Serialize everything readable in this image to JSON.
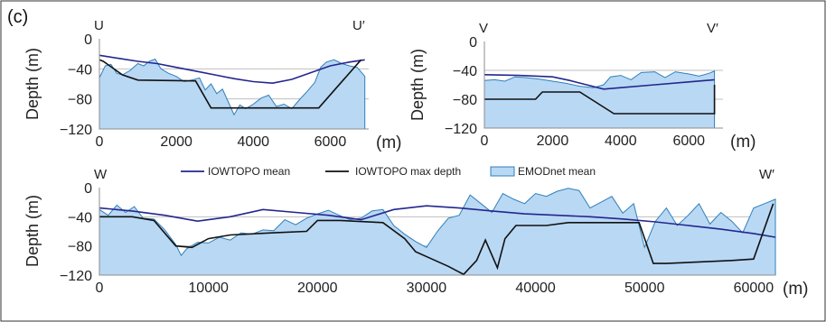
{
  "figure": {
    "tag": "(c)",
    "legend": {
      "iowtopo_mean": "IOWTOPO mean",
      "iowtopo_max": "IOWTOPO max depth",
      "emodnet_mean": "EMODnet mean"
    },
    "colors": {
      "emodnet_fill": "#b9d8f4",
      "emodnet_line": "#2f7fb9",
      "iowtopo_mean": "#23268f",
      "iowtopo_max": "#111111"
    }
  },
  "chart_data": [
    {
      "type": "area",
      "panel": "U",
      "start_label": "U",
      "end_label": "U′",
      "xlabel": "(m)",
      "ylabel": "Depth (m)",
      "xlim": [
        0,
        7000
      ],
      "ylim": [
        -120,
        0
      ],
      "xticks": [
        0,
        2000,
        4000,
        6000
      ],
      "yticks": [
        0,
        -40,
        -80,
        -120
      ],
      "grid": true,
      "series": [
        {
          "name": "EMODnet mean",
          "x": [
            0,
            150,
            300,
            450,
            600,
            800,
            1000,
            1150,
            1300,
            1450,
            1600,
            1800,
            2000,
            2200,
            2400,
            2600,
            2750,
            2900,
            3050,
            3200,
            3350,
            3500,
            3650,
            3800,
            4000,
            4200,
            4400,
            4600,
            4800,
            5000,
            5200,
            5400,
            5600,
            5750,
            5900,
            6100,
            6300,
            6500,
            6700,
            6900
          ],
          "y": [
            -52,
            -36,
            -34,
            -46,
            -48,
            -42,
            -33,
            -36,
            -30,
            -27,
            -40,
            -46,
            -50,
            -57,
            -55,
            -52,
            -68,
            -60,
            -73,
            -67,
            -84,
            -101,
            -88,
            -93,
            -87,
            -79,
            -75,
            -90,
            -87,
            -93,
            -81,
            -70,
            -58,
            -38,
            -31,
            -28,
            -33,
            -36,
            -38,
            -50
          ]
        },
        {
          "name": "IOWTOPO mean",
          "x": [
            0,
            500,
            1000,
            1500,
            2000,
            2500,
            3000,
            3500,
            4000,
            4500,
            5000,
            5500,
            6000,
            6500,
            6900
          ],
          "y": [
            -22,
            -26,
            -30,
            -33,
            -38,
            -43,
            -48,
            -53,
            -57,
            -59,
            -54,
            -45,
            -36,
            -31,
            -28
          ]
        },
        {
          "name": "IOWTOPO max depth",
          "x": [
            0,
            100,
            600,
            1000,
            2500,
            2900,
            5700,
            6800
          ],
          "y": [
            -28,
            -30,
            -48,
            -55,
            -56,
            -92,
            -92,
            -28
          ]
        }
      ]
    },
    {
      "type": "area",
      "panel": "V",
      "start_label": "V",
      "end_label": "V′",
      "xlabel": "(m)",
      "ylabel": "Depth (m)",
      "xlim": [
        0,
        7000
      ],
      "ylim": [
        -120,
        0
      ],
      "xticks": [
        0,
        2000,
        4000,
        6000
      ],
      "yticks": [
        0,
        -40,
        -80,
        -120
      ],
      "grid": true,
      "series": [
        {
          "name": "EMODnet mean",
          "x": [
            0,
            300,
            600,
            900,
            1200,
            1600,
            2000,
            2400,
            2800,
            3200,
            3500,
            3700,
            4000,
            4300,
            4600,
            5000,
            5300,
            5600,
            6000,
            6300,
            6600,
            6750
          ],
          "y": [
            -54,
            -53,
            -55,
            -49,
            -50,
            -52,
            -55,
            -58,
            -62,
            -64,
            -60,
            -49,
            -47,
            -53,
            -43,
            -42,
            -50,
            -42,
            -45,
            -48,
            -44,
            -41
          ]
        },
        {
          "name": "IOWTOPO mean",
          "x": [
            0,
            1000,
            2000,
            2500,
            3000,
            3500,
            4000,
            5000,
            6000,
            6750
          ],
          "y": [
            -46,
            -47,
            -49,
            -54,
            -60,
            -66,
            -64,
            -60,
            -56,
            -53
          ]
        },
        {
          "name": "IOWTOPO max depth",
          "x": [
            0,
            1500,
            1700,
            2800,
            3800,
            6750,
            6750
          ],
          "y": [
            -80,
            -80,
            -70,
            -70,
            -100,
            -100,
            -60
          ]
        }
      ]
    },
    {
      "type": "area",
      "panel": "W",
      "start_label": "W",
      "end_label": "W′",
      "xlabel": "(m)",
      "ylabel": "Depth (m)",
      "xlim": [
        0,
        62000
      ],
      "ylim": [
        -120,
        0
      ],
      "xticks": [
        0,
        10000,
        20000,
        30000,
        40000,
        50000,
        60000
      ],
      "yticks": [
        0,
        -40,
        -80,
        -120
      ],
      "grid": true,
      "series": [
        {
          "name": "EMODnet mean",
          "x": [
            0,
            800,
            1600,
            2400,
            3200,
            4000,
            5000,
            6000,
            7000,
            7500,
            8000,
            9000,
            10000,
            11000,
            12000,
            13000,
            14000,
            15000,
            16000,
            17000,
            18000,
            19000,
            20000,
            21000,
            22000,
            23000,
            24000,
            25000,
            26000,
            27000,
            28000,
            29000,
            30000,
            31000,
            32000,
            33000,
            34000,
            35000,
            36000,
            37000,
            38000,
            39000,
            40000,
            41000,
            42000,
            43000,
            44000,
            45000,
            46000,
            47000,
            48000,
            49000,
            50000,
            51000,
            52000,
            53000,
            54000,
            55000,
            56000,
            57000,
            58000,
            59000,
            60000,
            61000,
            62000
          ],
          "y": [
            -30,
            -38,
            -24,
            -34,
            -26,
            -42,
            -43,
            -58,
            -78,
            -93,
            -84,
            -75,
            -76,
            -68,
            -72,
            -62,
            -64,
            -58,
            -59,
            -44,
            -51,
            -42,
            -36,
            -31,
            -38,
            -44,
            -42,
            -32,
            -30,
            -52,
            -64,
            -74,
            -82,
            -60,
            -42,
            -38,
            -10,
            -22,
            -34,
            -8,
            -16,
            -22,
            -8,
            -12,
            -5,
            -1,
            -4,
            -28,
            -20,
            -12,
            -35,
            -22,
            -82,
            -46,
            -28,
            -52,
            -38,
            -22,
            -50,
            -34,
            -46,
            -62,
            -28,
            -22,
            -16
          ]
        },
        {
          "name": "IOWTOPO mean",
          "x": [
            0,
            3000,
            6000,
            9000,
            12000,
            15000,
            18000,
            21000,
            24000,
            27000,
            30000,
            33000,
            36000,
            39000,
            42000,
            45000,
            48000,
            51000,
            54000,
            57000,
            60000,
            62000
          ],
          "y": [
            -28,
            -32,
            -38,
            -46,
            -40,
            -30,
            -34,
            -38,
            -44,
            -30,
            -25,
            -28,
            -32,
            -36,
            -38,
            -40,
            -43,
            -47,
            -52,
            -57,
            -63,
            -68
          ]
        },
        {
          "name": "IOWTOPO max depth",
          "x": [
            0,
            3000,
            5000,
            7000,
            8500,
            10000,
            12000,
            16000,
            19000,
            20000,
            22000,
            26000,
            28000,
            29000,
            30500,
            32000,
            33400,
            34600,
            35400,
            36500,
            37200,
            38200,
            41000,
            43000,
            45000,
            47500,
            49500,
            50200,
            50800,
            52000,
            55000,
            58000,
            60000,
            61800
          ],
          "y": [
            -40,
            -40,
            -45,
            -80,
            -82,
            -70,
            -65,
            -62,
            -60,
            -45,
            -45,
            -48,
            -70,
            -88,
            -98,
            -108,
            -119,
            -100,
            -72,
            -110,
            -70,
            -52,
            -52,
            -48,
            -48,
            -48,
            -48,
            -78,
            -104,
            -104,
            -102,
            -100,
            -98,
            -22
          ]
        }
      ]
    }
  ]
}
